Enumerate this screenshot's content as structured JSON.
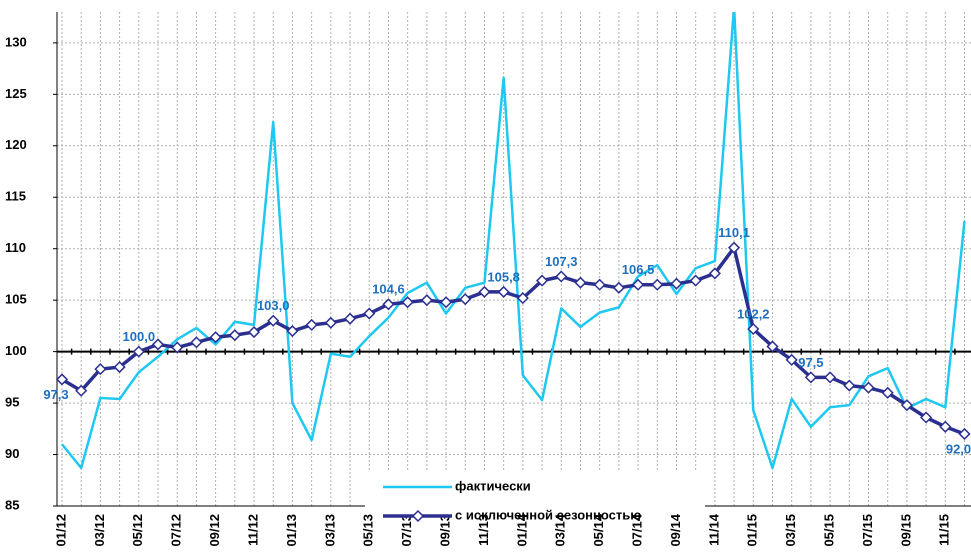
{
  "chart_data": {
    "type": "line",
    "categories": [
      "01/12",
      null,
      "03/12",
      null,
      "05/12",
      null,
      "07/12",
      null,
      "09/12",
      null,
      "11/12",
      null,
      "01/13",
      null,
      "03/13",
      null,
      "05/13",
      null,
      "07/13",
      null,
      "09/13",
      null,
      "11/13",
      null,
      "01/14",
      null,
      "03/14",
      null,
      "05/14",
      null,
      "07/14",
      null,
      "09/14",
      null,
      "11/14",
      null,
      "01/15",
      null,
      "03/15",
      null,
      "05/15",
      null,
      "07/15",
      null,
      "09/15",
      null,
      "11/15",
      null
    ],
    "series": [
      {
        "name": "фактически",
        "color": "#1ec8f0",
        "values": [
          91.0,
          88.7,
          95.5,
          95.4,
          98.0,
          99.5,
          101.2,
          102.3,
          100.7,
          102.9,
          102.6,
          122.3,
          95.0,
          91.4,
          99.8,
          99.5,
          101.5,
          103.3,
          105.7,
          106.7,
          103.7,
          106.2,
          106.7,
          126.6,
          97.7,
          95.3,
          104.2,
          102.4,
          103.8,
          104.3,
          107.3,
          108.4,
          105.6,
          108.1,
          108.8,
          133.5,
          94.3,
          88.7,
          95.4,
          92.7,
          94.6,
          94.8,
          97.6,
          98.4,
          94.5,
          95.4,
          94.6,
          112.7
        ]
      },
      {
        "name": "с исключенной сезонностью",
        "color": "#2b2f8f",
        "values": [
          97.3,
          96.2,
          98.3,
          98.5,
          100.0,
          100.7,
          100.4,
          100.9,
          101.4,
          101.6,
          101.9,
          103.0,
          102.0,
          102.6,
          102.8,
          103.2,
          103.7,
          104.6,
          104.8,
          105.0,
          104.8,
          105.1,
          105.8,
          105.8,
          105.2,
          106.9,
          107.3,
          106.7,
          106.5,
          106.2,
          106.5,
          106.5,
          106.6,
          106.9,
          107.6,
          110.1,
          102.2,
          100.5,
          99.2,
          97.5,
          97.5,
          96.7,
          96.5,
          96.0,
          94.8,
          93.6,
          92.7,
          92.0
        ],
        "value_labels": [
          "97,3",
          null,
          null,
          null,
          "100,0",
          null,
          null,
          null,
          null,
          null,
          null,
          "103,0",
          null,
          null,
          null,
          null,
          null,
          "104,6",
          null,
          null,
          null,
          null,
          null,
          "105,8",
          null,
          null,
          "107,3",
          null,
          null,
          null,
          "106,5",
          null,
          null,
          null,
          null,
          "110,1",
          "102,2",
          null,
          null,
          "97,5",
          null,
          null,
          null,
          null,
          null,
          null,
          null,
          "92,0"
        ]
      }
    ],
    "ylim": [
      85,
      133
    ],
    "yticks": [
      85,
      90,
      95,
      100,
      105,
      110,
      115,
      120,
      125,
      130
    ],
    "hline": 100,
    "grid": true
  }
}
